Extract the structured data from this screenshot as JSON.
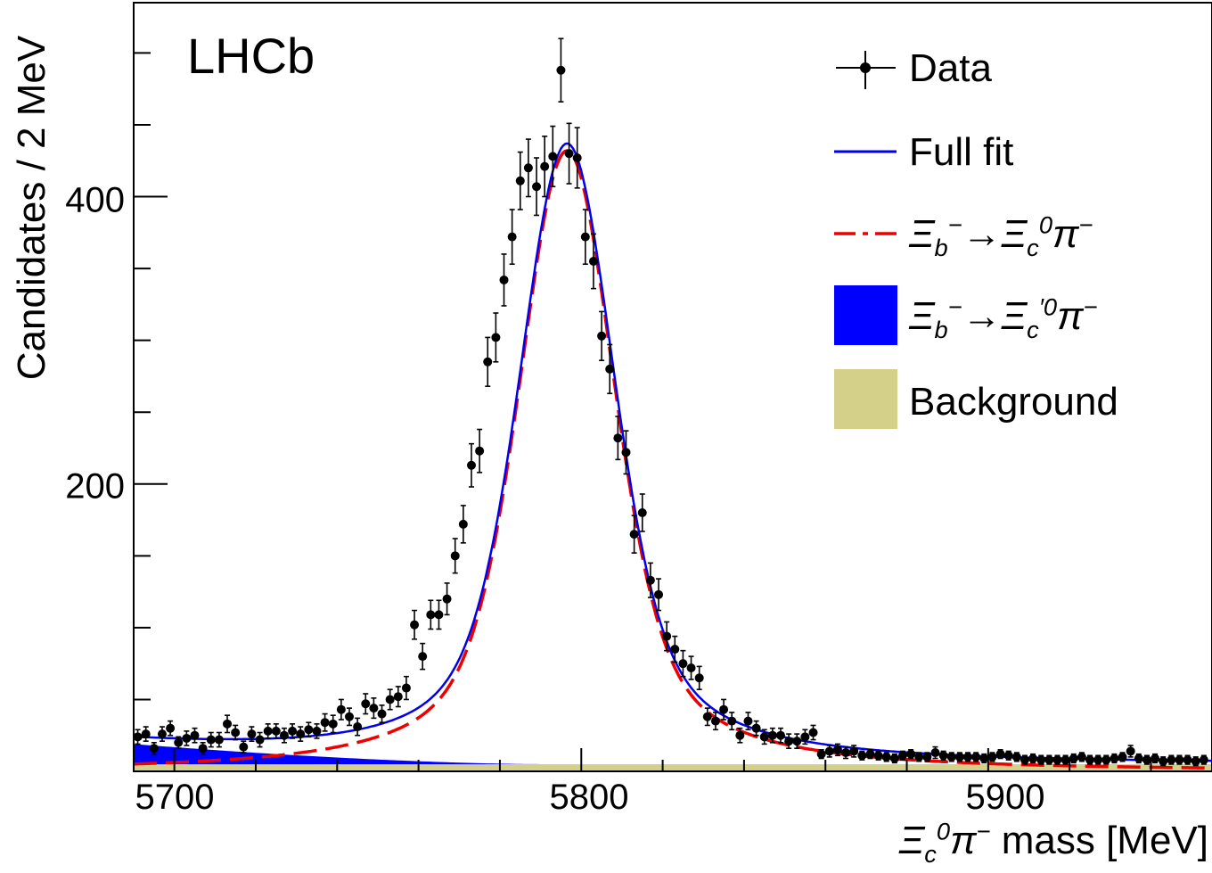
{
  "chart_data": {
    "type": "scatter",
    "experiment_label": "LHCb",
    "ylabel": "Candidates / 2 MeV",
    "xlabel_mass_text": "mass [MeV]",
    "xlim": [
      5690,
      5955
    ],
    "ylim": [
      0,
      535
    ],
    "x_ticks": [
      5700,
      5800,
      5900
    ],
    "y_ticks": [
      200,
      400
    ],
    "legend_position": "top-right",
    "legend": {
      "data": "Data",
      "full_fit": "Full fit",
      "signal_label": "Ξₑ⁻→Ξₓ⁰π⁻",
      "partial_label": "Ξₑ⁻→Ξₓ'⁰π⁻",
      "background": "Background"
    },
    "colors": {
      "full_fit": "#0000ee",
      "signal": "#ee0000",
      "partial_reco": "#0000ff",
      "background": "#d4d08a",
      "data": "#000000"
    },
    "data_points": {
      "x": [
        5691,
        5693,
        5695,
        5697,
        5699,
        5701,
        5703,
        5705,
        5707,
        5709,
        5711,
        5713,
        5715,
        5717,
        5719,
        5721,
        5723,
        5725,
        5727,
        5729,
        5731,
        5733,
        5735,
        5737,
        5739,
        5741,
        5743,
        5745,
        5747,
        5749,
        5751,
        5753,
        5755,
        5757,
        5759,
        5761,
        5763,
        5765,
        5767,
        5769,
        5771,
        5773,
        5775,
        5777,
        5779,
        5781,
        5783,
        5785,
        5787,
        5789,
        5791,
        5793,
        5795,
        5797,
        5799,
        5801,
        5803,
        5805,
        5807,
        5809,
        5811,
        5813,
        5815,
        5817,
        5819,
        5821,
        5823,
        5825,
        5827,
        5829,
        5831,
        5833,
        5835,
        5837,
        5839,
        5841,
        5843,
        5845,
        5847,
        5849,
        5851,
        5853,
        5855,
        5857,
        5859,
        5861,
        5863,
        5865,
        5867,
        5869,
        5871,
        5873,
        5875,
        5877,
        5879,
        5881,
        5883,
        5885,
        5887,
        5889,
        5891,
        5893,
        5895,
        5897,
        5899,
        5901,
        5903,
        5905,
        5907,
        5909,
        5911,
        5913,
        5915,
        5917,
        5919,
        5921,
        5923,
        5925,
        5927,
        5929,
        5931,
        5933,
        5935,
        5937,
        5939,
        5941,
        5943,
        5945,
        5947,
        5949,
        5951,
        5953
      ],
      "y": [
        24,
        26,
        16,
        26,
        30,
        20,
        23,
        25,
        16,
        22,
        22,
        33,
        27,
        17,
        26,
        22,
        28,
        28,
        25,
        28,
        26,
        29,
        28,
        34,
        33,
        43,
        38,
        31,
        47,
        44,
        40,
        50,
        52,
        58,
        102,
        80,
        109,
        109,
        120,
        150,
        172,
        213,
        223,
        285,
        302,
        342,
        372,
        411,
        420,
        407,
        421,
        428,
        488,
        430,
        427,
        372,
        355,
        303,
        280,
        232,
        222,
        165,
        180,
        133,
        123,
        94,
        85,
        75,
        72,
        65,
        38,
        35,
        43,
        35,
        25,
        35,
        30,
        24,
        25,
        25,
        21,
        21,
        24,
        27,
        12,
        14,
        15,
        13,
        14,
        11,
        12,
        11,
        10,
        9,
        11,
        12,
        10,
        10,
        13,
        11,
        10,
        10,
        10,
        10,
        9,
        10,
        12,
        11,
        10,
        8,
        9,
        8,
        8,
        8,
        8,
        9,
        10,
        8,
        8,
        8,
        9,
        10,
        14,
        9,
        8,
        9,
        7,
        8,
        8,
        8,
        7,
        8
      ],
      "errors": [
        5,
        5,
        4,
        5,
        5,
        4,
        5,
        5,
        4,
        5,
        5,
        6,
        5,
        4,
        5,
        5,
        5,
        5,
        5,
        5,
        5,
        5,
        5,
        6,
        6,
        7,
        6,
        6,
        7,
        7,
        6,
        7,
        7,
        8,
        10,
        9,
        10,
        10,
        11,
        12,
        13,
        15,
        15,
        17,
        17,
        18,
        19,
        20,
        20,
        20,
        21,
        21,
        22,
        21,
        21,
        19,
        19,
        17,
        17,
        15,
        15,
        13,
        13,
        12,
        11,
        10,
        9,
        9,
        8,
        8,
        6,
        6,
        7,
        6,
        5,
        6,
        5,
        5,
        5,
        5,
        5,
        5,
        5,
        5,
        3,
        4,
        4,
        4,
        4,
        3,
        3,
        3,
        3,
        3,
        3,
        3,
        3,
        3,
        4,
        3,
        3,
        3,
        3,
        3,
        3,
        3,
        3,
        3,
        3,
        3,
        3,
        3,
        3,
        3,
        3,
        3,
        3,
        3,
        3,
        3,
        3,
        3,
        4,
        3,
        3,
        3,
        3,
        3,
        3,
        3,
        3,
        3
      ]
    },
    "model": {
      "signal_mean": 5796.5,
      "signal_sigma": 11.0,
      "signal_peak": 432,
      "signal_tail_width": 17.5,
      "background_level": 5,
      "partial_reco_start_height": 14,
      "partial_reco_end": 5790
    }
  }
}
